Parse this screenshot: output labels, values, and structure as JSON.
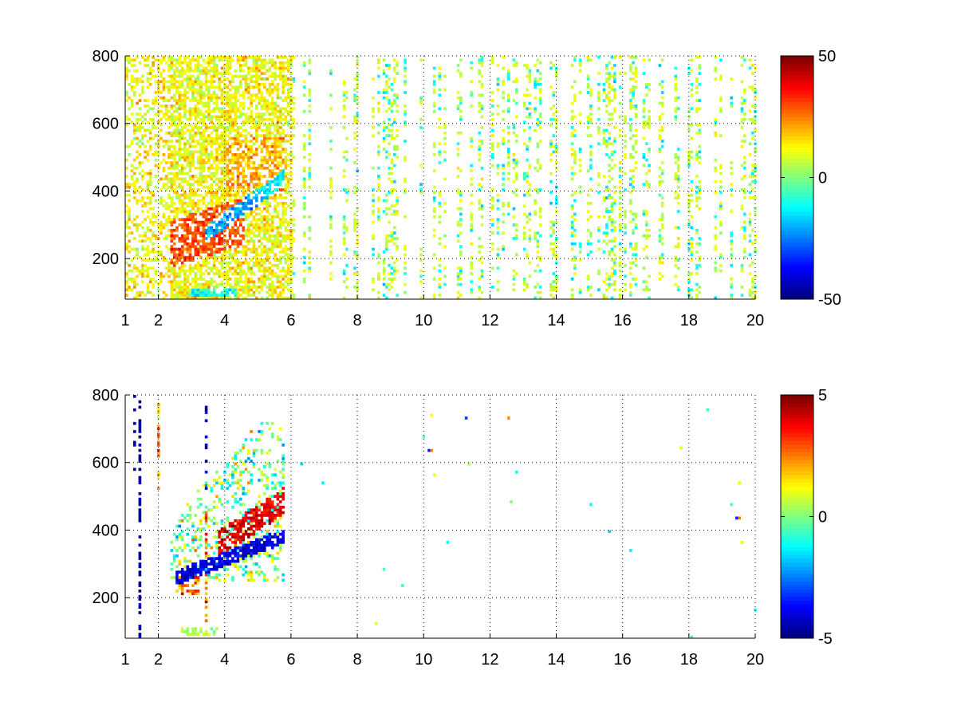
{
  "chart_data": [
    {
      "type": "heatmap",
      "title": "",
      "xlabel": "",
      "ylabel": "",
      "xlim": [
        1,
        20
      ],
      "ylim": [
        80,
        800
      ],
      "grid": true,
      "x_tick_labels": [
        "1",
        "2",
        "4",
        "6",
        "8",
        "10",
        "12",
        "14",
        "16",
        "18",
        "20"
      ],
      "x_ticks": [
        1,
        2,
        4,
        6,
        8,
        10,
        12,
        14,
        16,
        18,
        20
      ],
      "y_tick_labels": [
        "200",
        "400",
        "600",
        "800"
      ],
      "y_ticks": [
        200,
        400,
        600,
        800
      ],
      "colormap": "jet",
      "color_range": [
        -50,
        50
      ],
      "colorbar_labels": [
        "50",
        "0",
        "-50"
      ],
      "colorbar_ticks": [
        50,
        0,
        -50
      ],
      "value_regions": [
        {
          "x": [
            1.0,
            6.0
          ],
          "y": [
            80,
            800
          ],
          "typical_value": 15
        },
        {
          "x": [
            2.3,
            4.5
          ],
          "y": [
            200,
            350
          ],
          "typical_value": 35
        },
        {
          "x": [
            3.5,
            5.8
          ],
          "y": [
            250,
            450
          ],
          "typical_value": -20
        },
        {
          "x": [
            6.0,
            20.0
          ],
          "y": [
            80,
            800
          ],
          "typical_value": 5
        }
      ]
    },
    {
      "type": "heatmap",
      "title": "",
      "xlabel": "",
      "ylabel": "",
      "xlim": [
        1,
        20
      ],
      "ylim": [
        80,
        800
      ],
      "grid": true,
      "x_tick_labels": [
        "1",
        "2",
        "4",
        "6",
        "8",
        "10",
        "12",
        "14",
        "16",
        "18",
        "20"
      ],
      "x_ticks": [
        1,
        2,
        4,
        6,
        8,
        10,
        12,
        14,
        16,
        18,
        20
      ],
      "y_tick_labels": [
        "200",
        "400",
        "600",
        "800"
      ],
      "y_ticks": [
        200,
        400,
        600,
        800
      ],
      "colormap": "jet",
      "color_range": [
        -5,
        5
      ],
      "colorbar_labels": [
        "5",
        "0",
        "-5"
      ],
      "colorbar_ticks": [
        5,
        0,
        -5
      ],
      "value_regions": [
        {
          "x": [
            2.3,
            5.8
          ],
          "y": [
            200,
            650
          ],
          "typical_value": 1
        },
        {
          "x": [
            2.5,
            5.5
          ],
          "y": [
            250,
            350
          ],
          "typical_value": -4
        },
        {
          "x": [
            3.8,
            5.8
          ],
          "y": [
            400,
            600
          ],
          "typical_value": 4
        },
        {
          "x": [
            1.2,
            1.6
          ],
          "y": [
            80,
            780
          ],
          "typical_value": -5
        }
      ]
    }
  ]
}
